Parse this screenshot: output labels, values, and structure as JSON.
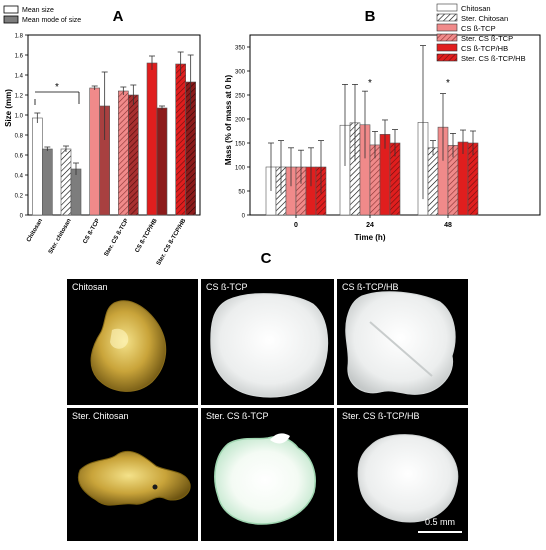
{
  "figure": {
    "panels": [
      {
        "letter": "A",
        "legend": [
          "Mean size",
          "Mean mode of size"
        ],
        "significance_marker": "*"
      },
      {
        "letter": "B",
        "significance_markers": [
          "*",
          "*"
        ]
      },
      {
        "letter": "C",
        "photos": [
          {
            "label": "Chitosan",
            "appearance": "yellow-gold translucent"
          },
          {
            "label": "CS ß-TCP",
            "appearance": "white"
          },
          {
            "label": "CS ß-TCP/HB",
            "appearance": "white"
          },
          {
            "label": "Ster. Chitosan",
            "appearance": "yellow-gold translucent, fragmented"
          },
          {
            "label": "Ster. CS ß-TCP",
            "appearance": "white with pale green rim"
          },
          {
            "label": "Ster. CS ß-TCP/HB",
            "appearance": "white"
          }
        ],
        "scale_bar": "0.5 mm"
      }
    ],
    "colors": {
      "chitosan": "#ffffff",
      "mode_gray": "#7d7d7d",
      "cs_tcp": "#f08a8a",
      "cs_tcp_mode": "#a84040",
      "cs_tcp_hb": "#e01e1e",
      "cs_tcp_hb_mode": "#8c1a1a",
      "photo_background": "#000000"
    }
  },
  "chart_data": [
    {
      "type": "bar",
      "ylabel": "Size (mm)",
      "ylim": [
        0,
        1.8
      ],
      "yticks": [
        "0",
        "0.2",
        "0.4",
        "0.6",
        "0.8",
        "1.0",
        "1.2",
        "1.4",
        "1.6",
        "1.8"
      ],
      "categories": [
        "Chitosan",
        "Ster. chitosan",
        "CS ß-TCP",
        "Ster. CS ß-TCP",
        "CS ß-TCP/HB",
        "Ster. CS ß-TCP/HB"
      ],
      "series": [
        {
          "name": "Mean size",
          "values": [
            0.97,
            0.66,
            1.27,
            1.24,
            1.52,
            1.51
          ],
          "errors": [
            0.05,
            0.03,
            0.02,
            0.04,
            0.07,
            0.12
          ]
        },
        {
          "name": "Mean mode of size",
          "values": [
            0.66,
            0.46,
            1.09,
            1.2,
            1.07,
            1.33
          ],
          "errors": [
            0.02,
            0.06,
            0.34,
            0.1,
            0.02,
            0.27
          ]
        }
      ],
      "hatched_categories": [
        "Ster. chitosan",
        "Ster. CS ß-TCP",
        "Ster. CS ß-TCP/HB"
      ],
      "legend_position": "top-left",
      "grid": false
    },
    {
      "type": "bar",
      "xlabel": "Time (h)",
      "ylabel": "Mass (% of mass at 0 h)",
      "ylim": [
        0,
        375
      ],
      "yticks": [
        "0",
        "50",
        "100",
        "150",
        "200",
        "250",
        "300",
        "350"
      ],
      "categories": [
        "0",
        "24",
        "48"
      ],
      "series": [
        {
          "name": "Chitosan",
          "values": [
            100,
            187,
            193
          ],
          "errors": [
            50,
            85,
            160
          ]
        },
        {
          "name": "Ster. Chitosan",
          "values": [
            100,
            192,
            140
          ],
          "errors": [
            55,
            80,
            15
          ]
        },
        {
          "name": "CS ß-TCP",
          "values": [
            100,
            188,
            183
          ],
          "errors": [
            40,
            70,
            70
          ]
        },
        {
          "name": "Ster. CS ß-TCP",
          "values": [
            100,
            146,
            145
          ],
          "errors": [
            35,
            28,
            25
          ]
        },
        {
          "name": "CS ß-TCP/HB",
          "values": [
            100,
            168,
            152
          ],
          "errors": [
            40,
            30,
            25
          ]
        },
        {
          "name": "Ster. CS ß-TCP/HB",
          "values": [
            100,
            150,
            150
          ],
          "errors": [
            55,
            28,
            25
          ]
        }
      ],
      "significant_categories": [
        "24",
        "48"
      ],
      "legend_position": "top-right",
      "grid": false
    }
  ]
}
